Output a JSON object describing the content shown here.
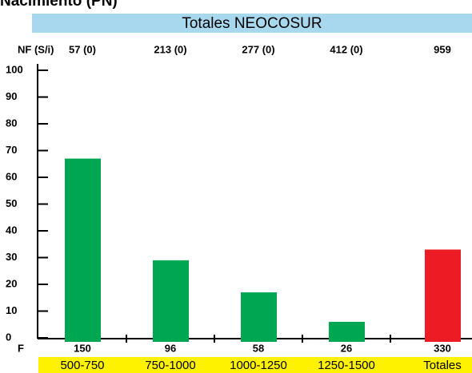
{
  "chart_data": {
    "type": "bar",
    "title": "Nacimiento (PN)",
    "subtitle": "Totales NEOCOSUR",
    "categories": [
      "500-750",
      "750-1000",
      "1000-1250",
      "1250-1500",
      "Totales"
    ],
    "values": [
      67,
      29,
      17,
      6,
      33
    ],
    "colors": [
      "#00a651",
      "#00a651",
      "#00a651",
      "#00a651",
      "#ed1c24"
    ],
    "nf_label": "NF (S/i)",
    "nf": [
      "57 (0)",
      "213 (0)",
      "277 (0)",
      "412 (0)",
      "959"
    ],
    "f_label": "F",
    "f_values": [
      150,
      96,
      58,
      26,
      330
    ],
    "ylim": [
      0,
      100
    ],
    "yticks": [
      0,
      10,
      20,
      30,
      40,
      50,
      60,
      70,
      80,
      90,
      100
    ]
  }
}
